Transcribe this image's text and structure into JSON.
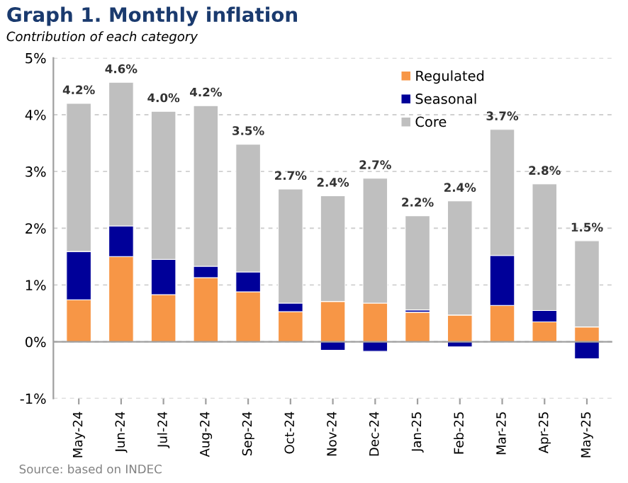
{
  "chart_data": {
    "type": "bar",
    "stacked": true,
    "title": "Graph 1. Monthly inflation",
    "subtitle": "Contribution of each category",
    "categories": [
      "May-24",
      "Jun-24",
      "Jul-24",
      "Aug-24",
      "Sep-24",
      "Oct-24",
      "Nov-24",
      "Dec-24",
      "Jan-25",
      "Feb-25",
      "Mar-25",
      "Apr-25",
      "May-25"
    ],
    "series": [
      {
        "name": "Regulated",
        "color": "#f79646",
        "values": [
          0.74,
          1.5,
          0.83,
          1.13,
          0.88,
          0.53,
          0.71,
          0.68,
          0.52,
          0.47,
          0.64,
          0.35,
          0.26
        ]
      },
      {
        "name": "Seasonal",
        "color": "#000099",
        "values": [
          0.85,
          0.54,
          0.62,
          0.2,
          0.35,
          0.15,
          -0.15,
          -0.17,
          0.04,
          -0.09,
          0.88,
          0.2,
          -0.3
        ]
      },
      {
        "name": "Core",
        "color": "#bfbfbf",
        "values": [
          2.61,
          2.53,
          2.61,
          2.83,
          2.25,
          2.01,
          1.86,
          2.2,
          1.66,
          2.01,
          2.22,
          2.23,
          1.52
        ]
      }
    ],
    "totals": [
      "4.2%",
      "4.6%",
      "4.0%",
      "4.2%",
      "3.5%",
      "2.7%",
      "2.4%",
      "2.7%",
      "2.2%",
      "2.4%",
      "3.7%",
      "2.8%",
      "1.5%"
    ],
    "ylim": [
      -1,
      5
    ],
    "yticks": [
      {
        "value": -1,
        "label": "-1%"
      },
      {
        "value": 0,
        "label": "0%"
      },
      {
        "value": 1,
        "label": "1%"
      },
      {
        "value": 2,
        "label": "2%"
      },
      {
        "value": 3,
        "label": "3%"
      },
      {
        "value": 4,
        "label": "4%"
      },
      {
        "value": 5,
        "label": "5%"
      }
    ],
    "grid": "y",
    "legend": "top right",
    "annotations": [
      "Source: based on INDEC"
    ]
  }
}
